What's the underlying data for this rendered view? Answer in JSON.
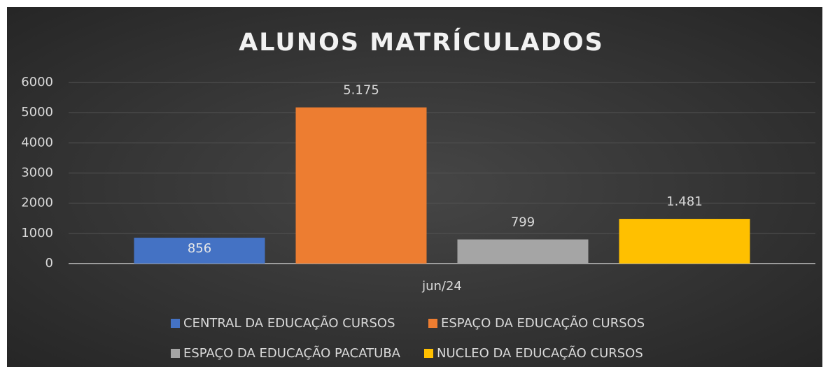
{
  "chart_data": {
    "type": "bar",
    "title": "ALUNOS MATRÍCULADOS",
    "categories": [
      "jun/24"
    ],
    "series": [
      {
        "name": "CENTRAL DA EDUCAÇÃO CURSOS",
        "color": "#4472c4",
        "values": [
          856
        ]
      },
      {
        "name": "ESPAÇO DA EDUCAÇÃO CURSOS",
        "color": "#ed7d31",
        "values": [
          5175
        ],
        "value_labels": [
          "5.175"
        ]
      },
      {
        "name": "ESPAÇO DA EDUCAÇÃO PACATUBA",
        "color": "#a5a5a5",
        "values": [
          799
        ]
      },
      {
        "name": "NUCLEO DA EDUCAÇÃO CURSOS",
        "color": "#ffc000",
        "values": [
          1481
        ],
        "value_labels": [
          "1.481"
        ]
      }
    ],
    "ylim": [
      0,
      6000
    ],
    "yticks": [
      0,
      1000,
      2000,
      3000,
      4000,
      5000,
      6000
    ],
    "grid": true,
    "legend": "bottom"
  }
}
